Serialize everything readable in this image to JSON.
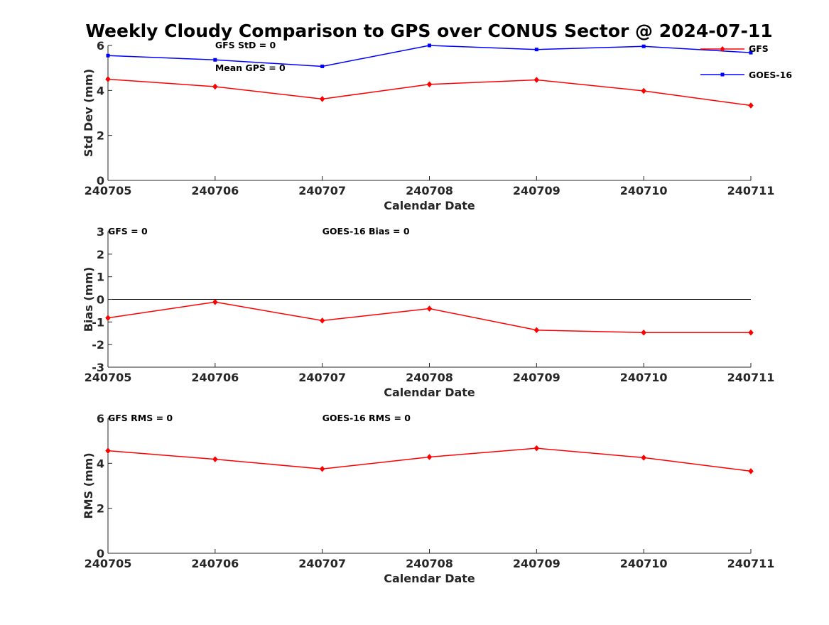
{
  "title": "Weekly Cloudy Comparison to GPS over CONUS Sector @ 2024-07-11",
  "colors": {
    "gfs": "#ff0000",
    "goes": "#0000ff",
    "axis": "#262626",
    "zero_line": "#000000"
  },
  "legend": {
    "items": [
      "GFS",
      "GOES-16"
    ],
    "position": "top-right"
  },
  "chart_data": [
    {
      "type": "line",
      "categories": [
        "240705",
        "240706",
        "240707",
        "240708",
        "240709",
        "240710",
        "240711"
      ],
      "xlabel": "Calendar Date",
      "ylabel": "Std Dev (mm)",
      "ylim": [
        0,
        6
      ],
      "yticks": [
        "0",
        "2",
        "4",
        "6"
      ],
      "grid": false,
      "zero_line": false,
      "annotations": [
        {
          "text": "GFS StD = 0",
          "at": "240706"
        },
        {
          "text": "Mean GPS = 0",
          "at": "240706"
        }
      ],
      "series": [
        {
          "name": "GFS",
          "values": [
            4.5,
            4.17,
            3.62,
            4.27,
            4.47,
            3.98,
            3.33
          ]
        },
        {
          "name": "GOES-16",
          "values": [
            5.55,
            5.36,
            5.07,
            6.0,
            5.82,
            5.96,
            5.68
          ]
        }
      ]
    },
    {
      "type": "line",
      "categories": [
        "240705",
        "240706",
        "240707",
        "240708",
        "240709",
        "240710",
        "240711"
      ],
      "xlabel": "Calendar Date",
      "ylabel": "Bias (mm)",
      "ylim": [
        -3,
        3
      ],
      "yticks": [
        "-3",
        "-2",
        "-1",
        "0",
        "1",
        "2",
        "3"
      ],
      "grid": false,
      "zero_line": true,
      "annotations": [
        {
          "text": "GFS = 0",
          "at": "240705"
        },
        {
          "text": "GOES-16 Bias  = 0",
          "at": "240707"
        }
      ],
      "series": [
        {
          "name": "GFS",
          "values": [
            -0.82,
            -0.12,
            -0.94,
            -0.41,
            -1.36,
            -1.47,
            -1.47
          ]
        }
      ]
    },
    {
      "type": "line",
      "categories": [
        "240705",
        "240706",
        "240707",
        "240708",
        "240709",
        "240710",
        "240711"
      ],
      "xlabel": "Calendar Date",
      "ylabel": "RMS (mm)",
      "ylim": [
        0,
        6
      ],
      "yticks": [
        "0",
        "2",
        "4",
        "6"
      ],
      "grid": false,
      "zero_line": false,
      "annotations": [
        {
          "text": "GFS RMS = 0",
          "at": "240705"
        },
        {
          "text": "GOES-16 RMS = 0",
          "at": "240707"
        }
      ],
      "series": [
        {
          "name": "GFS",
          "values": [
            4.56,
            4.18,
            3.75,
            4.28,
            4.67,
            4.25,
            3.65
          ]
        }
      ]
    }
  ]
}
